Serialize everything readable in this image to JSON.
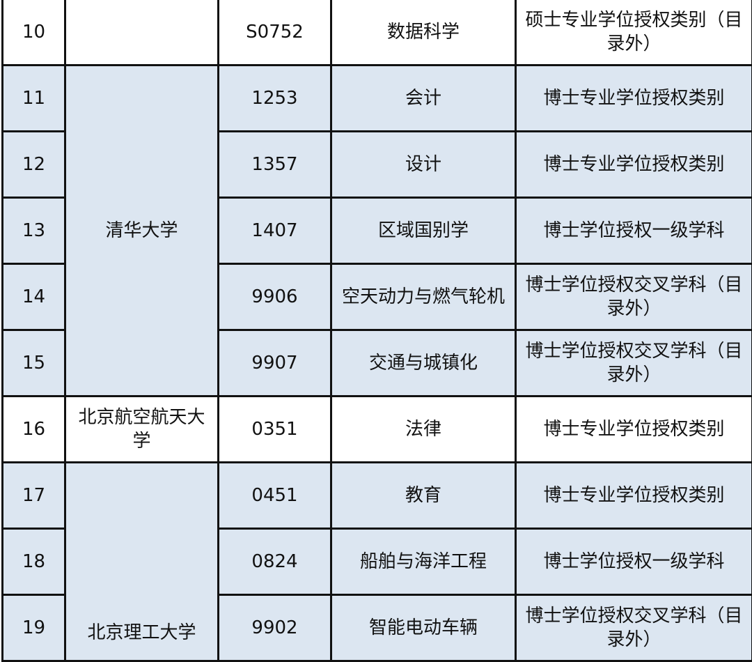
{
  "colors": {
    "shaded_row": "#dce6f1",
    "border": "#111111"
  },
  "rows": [
    {
      "no": "10",
      "university": "",
      "code": "S0752",
      "name": "数据科学",
      "type": "硕士专业学位授权类别（目录外）"
    },
    {
      "no": "11",
      "university": "清华大学",
      "code": "1253",
      "name": "会计",
      "type": "博士专业学位授权类别"
    },
    {
      "no": "12",
      "code": "1357",
      "name": "设计",
      "type": "博士专业学位授权类别"
    },
    {
      "no": "13",
      "code": "1407",
      "name": "区域国别学",
      "type": "博士学位授权一级学科"
    },
    {
      "no": "14",
      "code": "9906",
      "name": "空天动力与燃气轮机",
      "type": "博士学位授权交叉学科（目录外）"
    },
    {
      "no": "15",
      "code": "9907",
      "name": "交通与城镇化",
      "type": "博士学位授权交叉学科（目录外）"
    },
    {
      "no": "16",
      "university": "北京航空航天大学",
      "code": "0351",
      "name": "法律",
      "type": "博士专业学位授权类别"
    },
    {
      "no": "17",
      "university": "北京理工大学",
      "code": "0451",
      "name": "教育",
      "type": "博士专业学位授权类别"
    },
    {
      "no": "18",
      "code": "0824",
      "name": "船舶与海洋工程",
      "type": "博士学位授权一级学科"
    },
    {
      "no": "19",
      "code": "9902",
      "name": "智能电动车辆",
      "type": "博士学位授权交叉学科（目录外）"
    }
  ]
}
